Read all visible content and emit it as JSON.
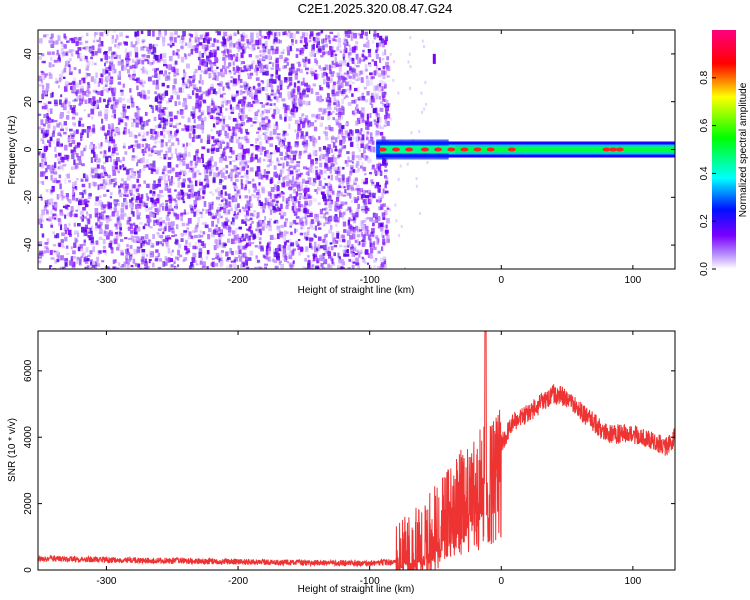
{
  "title": "C2E1.2025.320.08.47.G24",
  "chart_data": [
    {
      "type": "heatmap",
      "xlabel": "Height of straight line (km)",
      "ylabel": "Frequency (Hz)",
      "xlim": [
        -352,
        132
      ],
      "ylim": [
        -50,
        50
      ],
      "xticks": [
        -300,
        -200,
        -100,
        0,
        100
      ],
      "yticks": [
        -40,
        -20,
        0,
        20,
        40
      ],
      "colorbar": {
        "label": "Normalized spectral amplitude",
        "range": [
          0.0,
          1.0
        ],
        "ticks": [
          0.0,
          0.2,
          0.4,
          0.6,
          0.8
        ],
        "tick_labels": [
          "0.0",
          "0.2",
          "0.4",
          "0.6",
          "0.8"
        ],
        "colormap": [
          "#ffffff",
          "#7a00ff",
          "#0000ff",
          "#00ffff",
          "#00ff00",
          "#ffff00",
          "#ff0000",
          "#ff0080"
        ]
      },
      "noise_region_x": [
        -352,
        -87
      ],
      "signal": [
        {
          "x": -95,
          "freq": 0
        },
        {
          "x": -60,
          "freq": 1
        },
        {
          "x": -40,
          "freq": 0
        },
        {
          "x": 0,
          "freq": 0
        },
        {
          "x": 60,
          "freq": 0
        },
        {
          "x": 90,
          "freq": 1
        },
        {
          "x": 132,
          "freq": 0
        }
      ],
      "grid": false
    },
    {
      "type": "line",
      "xlabel": "Height of straight line (km)",
      "ylabel": "SNR (10 * v/v)",
      "xlim": [
        -352,
        132
      ],
      "ylim": [
        0,
        7200
      ],
      "xticks": [
        -300,
        -200,
        -100,
        0,
        100
      ],
      "yticks": [
        0,
        2000,
        4000,
        6000
      ],
      "color": "#ee3333",
      "series": [
        {
          "x": [
            -352,
            -300,
            -200,
            -150,
            -100,
            -75,
            -60,
            -45,
            -30,
            -20,
            -12,
            -5,
            0,
            10,
            20,
            30,
            40,
            50,
            60,
            80,
            100,
            115,
            125,
            132
          ],
          "y": [
            350,
            300,
            250,
            220,
            200,
            250,
            600,
            1500,
            2300,
            2700,
            3000,
            3300,
            3800,
            4500,
            4700,
            5000,
            5300,
            5200,
            4800,
            4100,
            4100,
            3900,
            3700,
            4000
          ]
        }
      ],
      "grid": false
    }
  ]
}
